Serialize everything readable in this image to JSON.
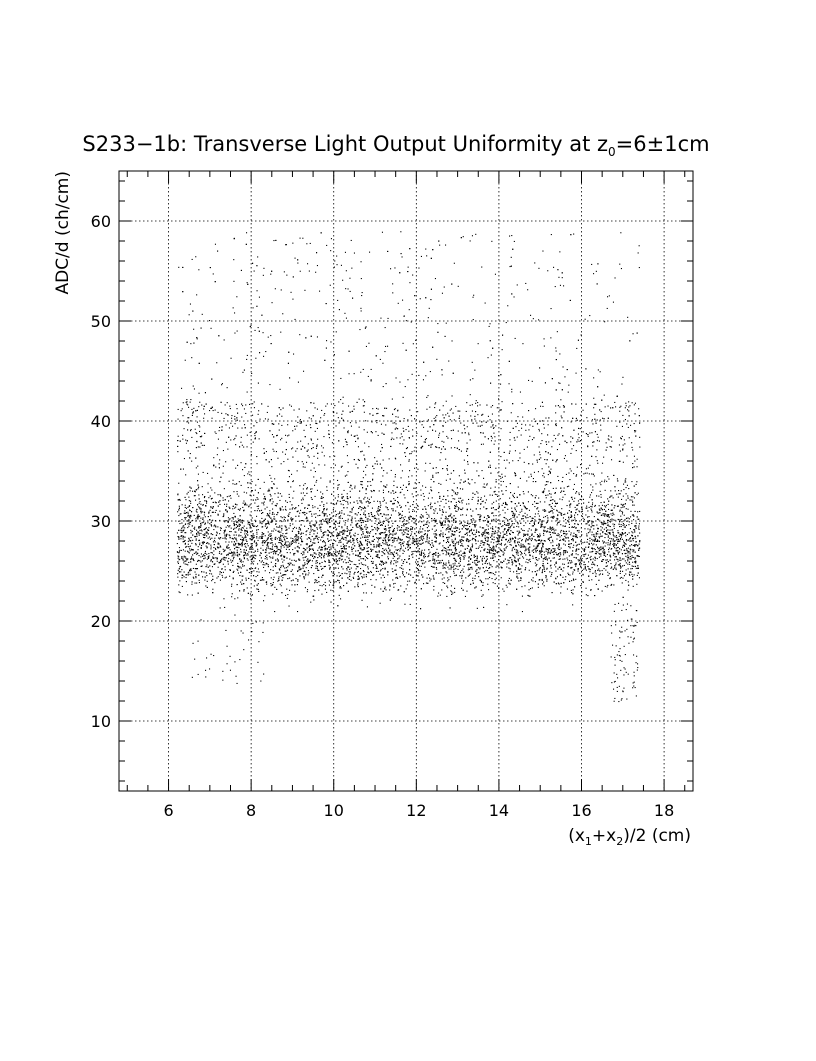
{
  "chart_data": {
    "type": "scatter",
    "title": {
      "prefix": "S233−1b: Transverse Light Output Uniformity at z",
      "sub": "0",
      "suffix": "=6±1cm"
    },
    "xlabel": {
      "parts": [
        {
          "text": "(x",
          "sub": false
        },
        {
          "text": "1",
          "sub": true
        },
        {
          "text": "+x",
          "sub": false
        },
        {
          "text": "2",
          "sub": true
        },
        {
          "text": ")/2 (cm)",
          "sub": false
        }
      ]
    },
    "ylabel": "ADC/d (ch/cm)",
    "xlim": [
      4.8,
      18.7
    ],
    "ylim": [
      3,
      65
    ],
    "xticks": [
      6,
      8,
      10,
      12,
      14,
      16,
      18
    ],
    "yticks": [
      10,
      20,
      30,
      40,
      50,
      60
    ],
    "x_tick_labels": [
      "6",
      "8",
      "10",
      "12",
      "14",
      "16",
      "18"
    ],
    "y_tick_labels": [
      "10",
      "20",
      "30",
      "40",
      "50",
      "60"
    ],
    "grid": true,
    "grid_style": "dotted",
    "point_count_approx": 9000,
    "distribution": {
      "x_range": [
        6.2,
        17.4
      ],
      "core_y_range": [
        22,
        33
      ],
      "core_center_y": 28,
      "sparse_tail_y_range": [
        12,
        59
      ],
      "low_tail_near_x": 17.1
    }
  }
}
